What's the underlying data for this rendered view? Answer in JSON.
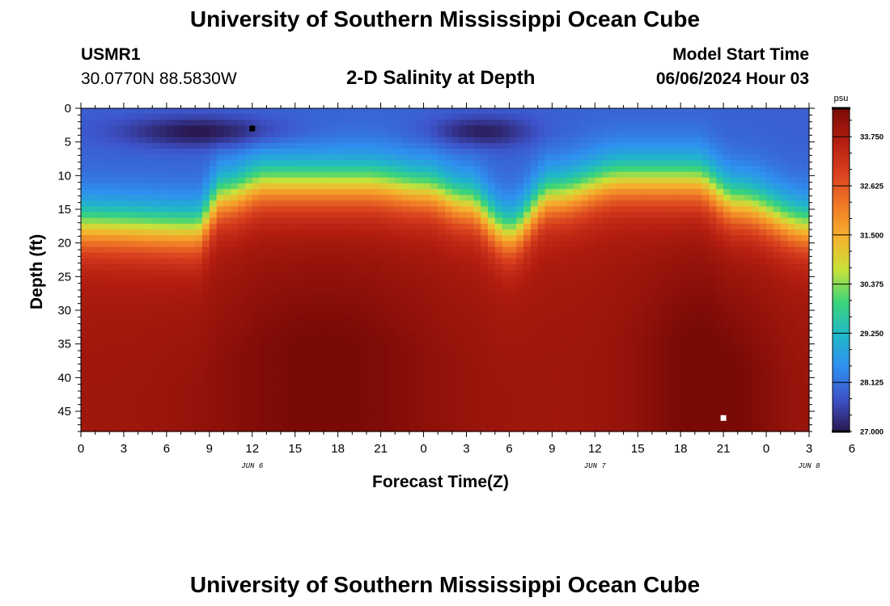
{
  "header": {
    "title": "University of Southern Mississippi Ocean Cube",
    "station_id": "USMR1",
    "coords": "30.0770N  88.5830W",
    "subtitle": "2-D Salinity at Depth",
    "model_label": "Model Start Time",
    "model_time": "06/06/2024 Hour 03"
  },
  "footer": {
    "title": "University of Southern Mississippi Ocean Cube"
  },
  "colors": {
    "scale": [
      "#2a1750",
      "#3d52c8",
      "#2f8ff0",
      "#20b8c8",
      "#3ad47a",
      "#c8e23a",
      "#f5b22e",
      "#f07a26",
      "#d8401e",
      "#b21d10",
      "#7a0a06"
    ]
  },
  "chart_data": {
    "type": "heatmap",
    "title": "2-D Salinity at Depth",
    "xlabel": "Forecast Time(Z)",
    "ylabel": "Depth (ft)",
    "x_hours": [
      0,
      51
    ],
    "x_ticks": [
      "0",
      "3",
      "6",
      "9",
      "12",
      "15",
      "18",
      "21",
      "0",
      "3",
      "6",
      "9",
      "12",
      "15",
      "18",
      "21",
      "0",
      "3",
      "6"
    ],
    "date_labels": [
      {
        "label": "JUN 6",
        "hour": 12
      },
      {
        "label": "JUN 7",
        "hour": 36
      },
      {
        "label": "JUN 8",
        "hour": 51
      }
    ],
    "ylim": [
      0,
      48
    ],
    "y_ticks": [
      "0",
      "5",
      "10",
      "15",
      "20",
      "25",
      "30",
      "35",
      "40",
      "45"
    ],
    "colorbar": {
      "unit": "psu",
      "min": 27.0,
      "max": 34.4,
      "ticks": [
        "27.000",
        "28.125",
        "29.250",
        "30.375",
        "31.500",
        "32.625",
        "33.750"
      ]
    },
    "halocline_depth_ft": [
      {
        "hour": 0,
        "depth": 17.5
      },
      {
        "hour": 8,
        "depth": 18
      },
      {
        "hour": 10,
        "depth": 13
      },
      {
        "hour": 13,
        "depth": 11
      },
      {
        "hour": 20,
        "depth": 11
      },
      {
        "hour": 24,
        "depth": 12
      },
      {
        "hour": 27,
        "depth": 14
      },
      {
        "hour": 30,
        "depth": 18.5
      },
      {
        "hour": 33,
        "depth": 13
      },
      {
        "hour": 38,
        "depth": 10.5
      },
      {
        "hour": 43,
        "depth": 10.5
      },
      {
        "hour": 46,
        "depth": 14
      },
      {
        "hour": 51,
        "depth": 17.5
      }
    ],
    "surface_min_salinity_psu": 27.0,
    "bottom_max_salinity_psu": 34.4,
    "markers": [
      {
        "name": "minimum",
        "hour": 12,
        "depth": 3,
        "color": "#000000"
      },
      {
        "name": "maximum",
        "hour": 45,
        "depth": 46,
        "color": "#ffffff"
      }
    ]
  }
}
